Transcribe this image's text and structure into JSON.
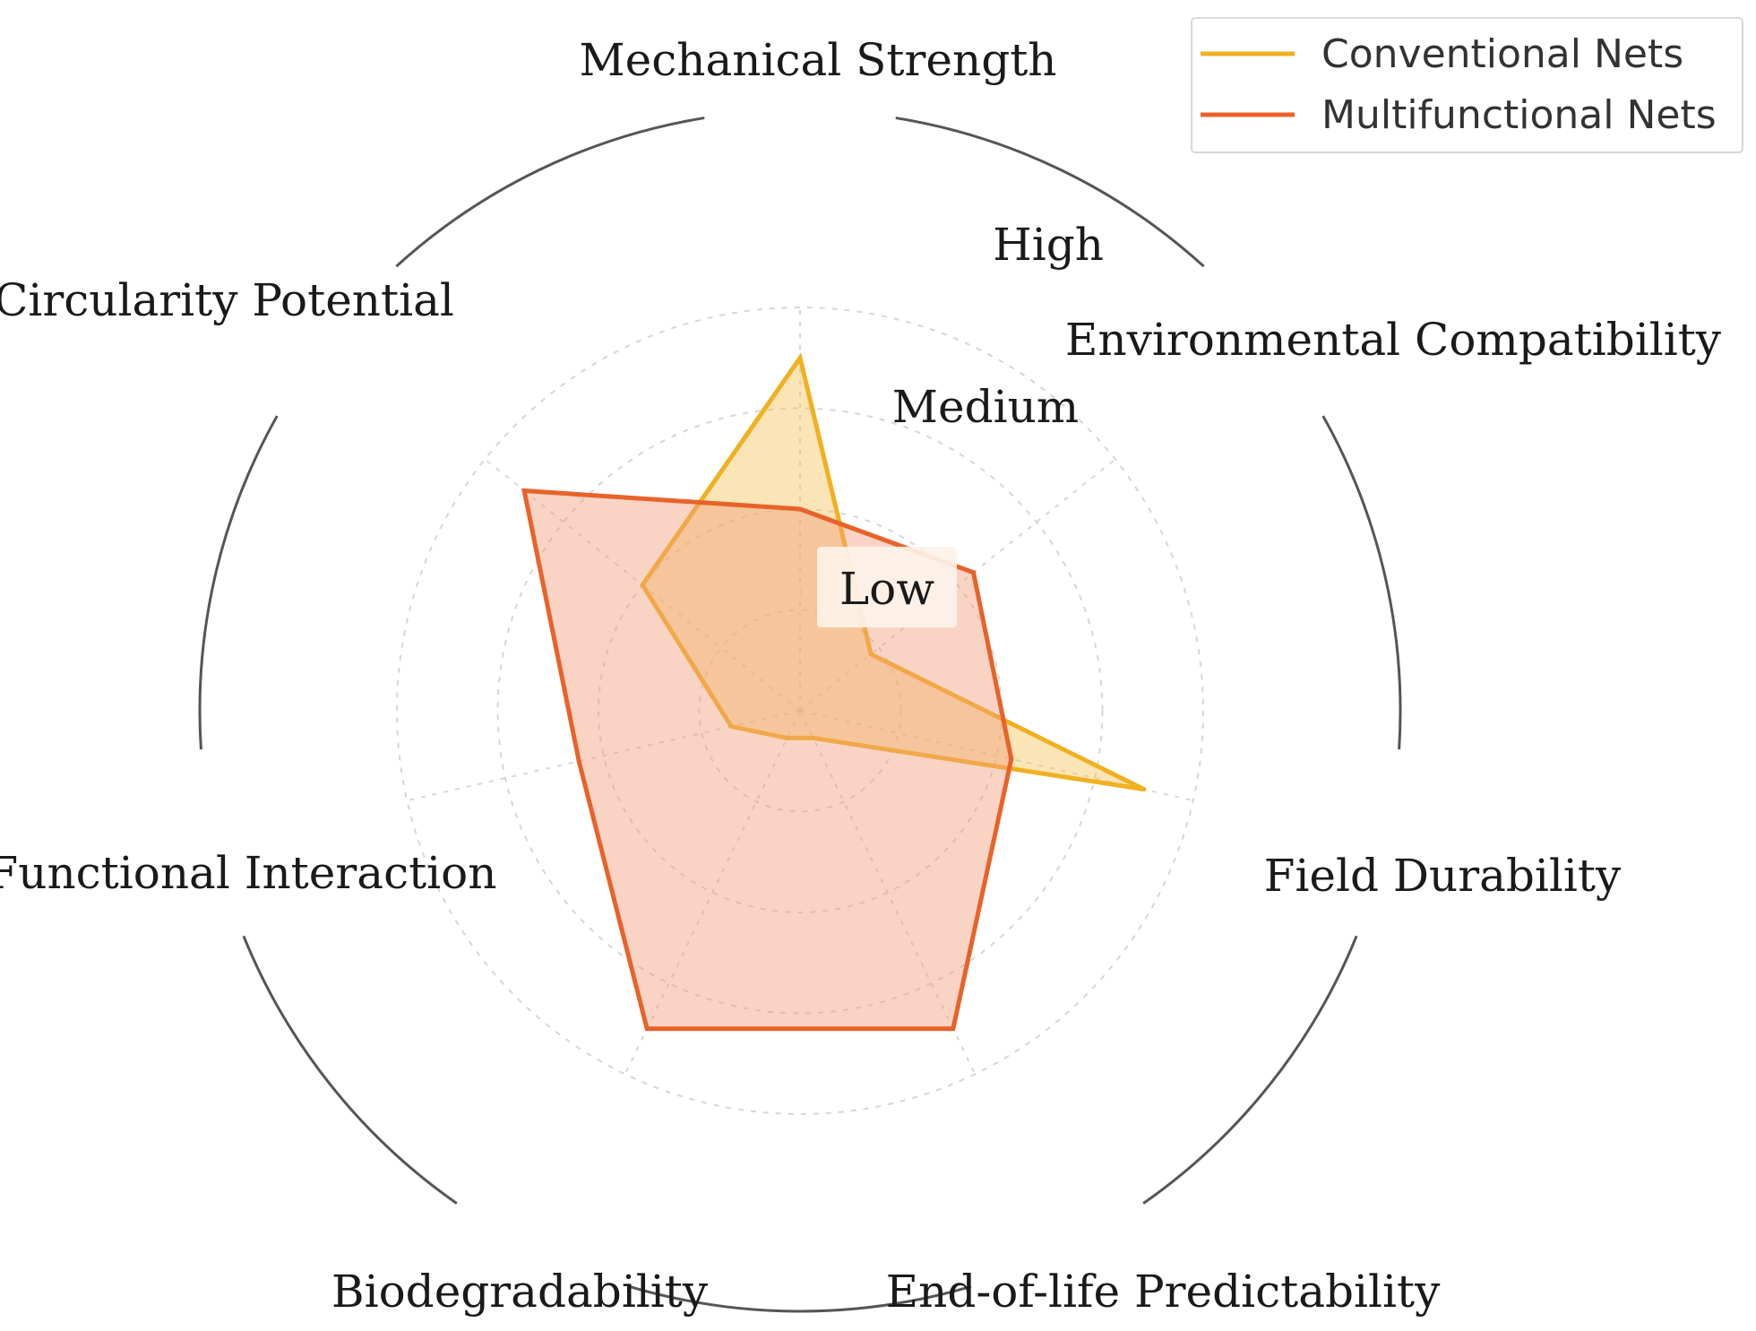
{
  "chart_data": {
    "type": "radar",
    "axes": [
      "Mechanical Strength",
      "Environmental Compatibility",
      "Field Durability",
      "End-of-life Predictability",
      "Biodegradability",
      "Functional Interaction",
      "Circularity Potential"
    ],
    "level_labels": [
      "Low",
      "Medium",
      "High"
    ],
    "r_range": [
      0,
      4
    ],
    "grid": true,
    "legend_position": "top-right",
    "series": [
      {
        "name": "Conventional Nets",
        "color": "#f0b020",
        "fill": "#f6c35a",
        "values": [
          3.5,
          0.9,
          3.5,
          0.3,
          0.3,
          0.7,
          2.0
        ]
      },
      {
        "name": "Multifunctional Nets",
        "color": "#e8622a",
        "fill": "#f2a07d",
        "values": [
          2.0,
          2.2,
          2.15,
          3.5,
          3.5,
          2.25,
          3.5
        ]
      }
    ]
  }
}
